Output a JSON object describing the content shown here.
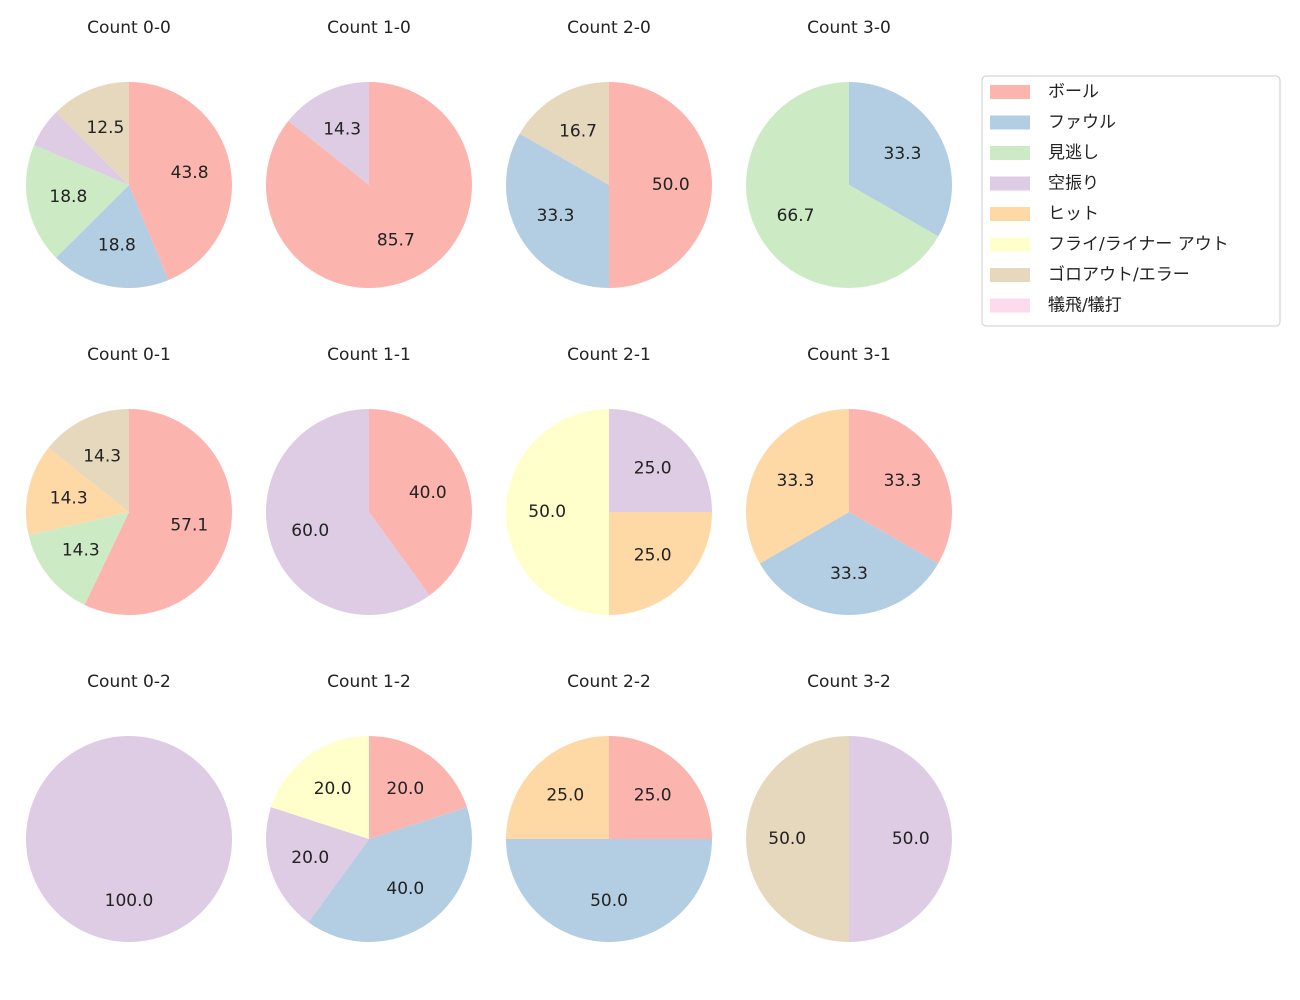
{
  "legend": {
    "labels": [
      "ボール",
      "ファウル",
      "見逃し",
      "空振り",
      "ヒット",
      "フライ/ライナー アウト",
      "ゴロアウト/エラー",
      "犠飛/犠打"
    ],
    "colors": [
      "#fbb4ae",
      "#b3cde3",
      "#ccebc5",
      "#decbe4",
      "#fed9a6",
      "#ffffcc",
      "#e5d8bd",
      "#fddaec"
    ]
  },
  "chart_data": [
    {
      "type": "pie",
      "title": "Count 0-0",
      "values": [
        43.8,
        18.8,
        18.8,
        6.2,
        null,
        null,
        12.5,
        null
      ],
      "value_labels": [
        "43.8",
        "18.8",
        "18.8",
        null,
        null,
        null,
        "12.5",
        null
      ]
    },
    {
      "type": "pie",
      "title": "Count 1-0",
      "values": [
        85.7,
        null,
        null,
        14.3,
        null,
        null,
        null,
        null
      ],
      "value_labels": [
        "85.7",
        null,
        null,
        "14.3",
        null,
        null,
        null,
        null
      ]
    },
    {
      "type": "pie",
      "title": "Count 2-0",
      "values": [
        50,
        33.3,
        null,
        null,
        null,
        null,
        16.7,
        null
      ],
      "value_labels": [
        "50.0",
        "33.3",
        null,
        null,
        null,
        null,
        "16.7",
        null
      ]
    },
    {
      "type": "pie",
      "title": "Count 3-0",
      "values": [
        null,
        33.3,
        66.7,
        null,
        null,
        null,
        null,
        null
      ],
      "value_labels": [
        null,
        "33.3",
        "66.7",
        null,
        null,
        null,
        null,
        null
      ]
    },
    {
      "type": "pie",
      "title": "Count 0-1",
      "values": [
        57.1,
        null,
        14.3,
        null,
        14.3,
        null,
        14.3,
        null
      ],
      "value_labels": [
        "57.1",
        null,
        "14.3",
        null,
        "14.3",
        null,
        "14.3",
        null
      ]
    },
    {
      "type": "pie",
      "title": "Count 1-1",
      "values": [
        40,
        null,
        null,
        60,
        null,
        null,
        null,
        null
      ],
      "value_labels": [
        "40.0",
        null,
        null,
        "60.0",
        null,
        null,
        null,
        null
      ]
    },
    {
      "type": "pie",
      "title": "Count 2-1",
      "values": [
        null,
        null,
        null,
        25,
        25,
        50,
        null,
        null
      ],
      "value_labels": [
        null,
        null,
        null,
        "25.0",
        "25.0",
        "50.0",
        null,
        null
      ]
    },
    {
      "type": "pie",
      "title": "Count 3-1",
      "values": [
        33.3,
        33.3,
        null,
        null,
        33.3,
        null,
        null,
        null
      ],
      "value_labels": [
        "33.3",
        "33.3",
        null,
        null,
        "33.3",
        null,
        null,
        null
      ]
    },
    {
      "type": "pie",
      "title": "Count 0-2",
      "values": [
        null,
        null,
        null,
        100,
        null,
        null,
        null,
        null
      ],
      "value_labels": [
        null,
        null,
        null,
        "100.0",
        null,
        null,
        null,
        null
      ]
    },
    {
      "type": "pie",
      "title": "Count 1-2",
      "values": [
        20,
        40,
        null,
        20,
        null,
        20,
        null,
        null
      ],
      "value_labels": [
        "20.0",
        "40.0",
        null,
        "20.0",
        null,
        "20.0",
        null,
        null
      ]
    },
    {
      "type": "pie",
      "title": "Count 2-2",
      "values": [
        25,
        50,
        null,
        null,
        25,
        null,
        null,
        null
      ],
      "value_labels": [
        "25.0",
        "50.0",
        null,
        null,
        "25.0",
        null,
        null,
        null
      ]
    },
    {
      "type": "pie",
      "title": "Count 3-2",
      "values": [
        null,
        null,
        null,
        50,
        null,
        null,
        50,
        null
      ],
      "value_labels": [
        null,
        null,
        null,
        "50.0",
        null,
        null,
        "50.0",
        null
      ]
    }
  ]
}
